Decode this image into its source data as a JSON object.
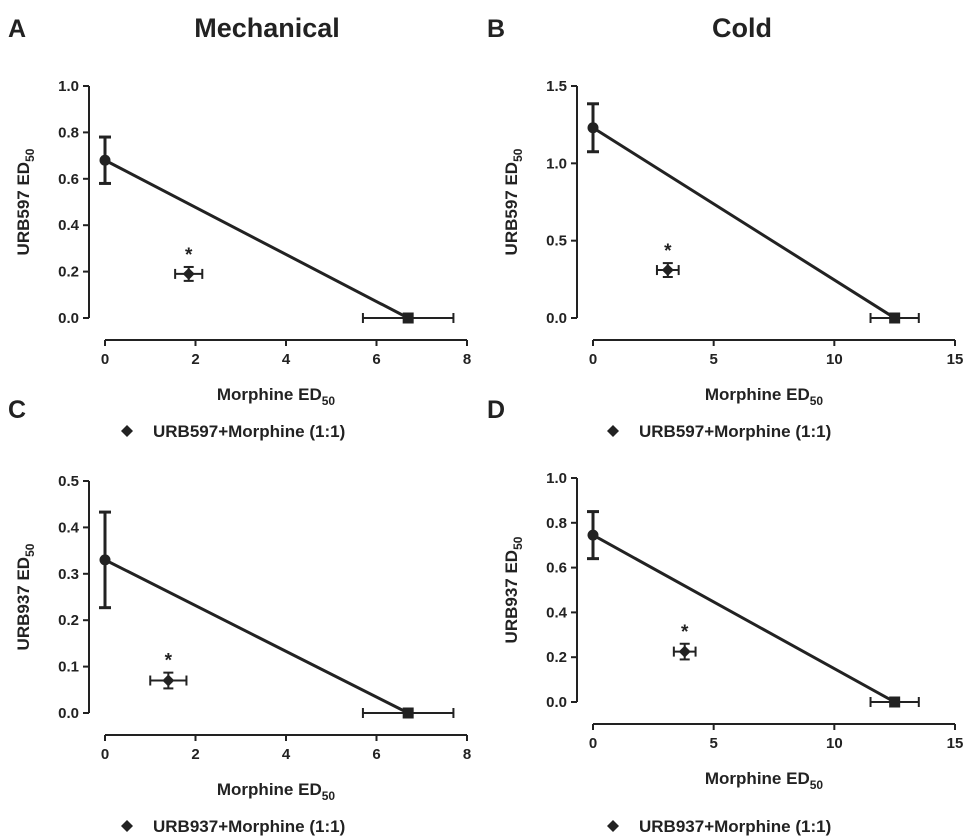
{
  "column_titles": [
    "Mechanical",
    "Cold"
  ],
  "chart_data": [
    {
      "panel": "A",
      "type": "scatter",
      "title": "Mechanical",
      "xlabel": "Morphine ED",
      "xlabel_sub": "50",
      "ylabel": "URB597 ED",
      "ylabel_sub": "50",
      "xlim": [
        0,
        8
      ],
      "ylim": [
        0,
        1.0
      ],
      "xticks": [
        "0",
        "2",
        "4",
        "6",
        "8"
      ],
      "yticks": [
        "0.0",
        "0.2",
        "0.4",
        "0.6",
        "0.8",
        "1.0"
      ],
      "isobole": {
        "y_intercept": 0.68,
        "y_err": 0.1,
        "x_intercept": 6.7,
        "x_err_low": 1.0,
        "x_err_high": 1.0
      },
      "combination": {
        "x": 1.85,
        "y": 0.19,
        "x_err": 0.3,
        "y_err": 0.03,
        "marker": "*"
      },
      "legend": [
        "URB597+Morphine (1:1)"
      ]
    },
    {
      "panel": "B",
      "type": "scatter",
      "title": "Cold",
      "xlabel": "Morphine ED",
      "xlabel_sub": "50",
      "ylabel": "URB597 ED",
      "ylabel_sub": "50",
      "xlim": [
        0,
        15
      ],
      "ylim": [
        0,
        1.5
      ],
      "xticks": [
        "0",
        "5",
        "10",
        "15"
      ],
      "yticks": [
        "0.0",
        "0.5",
        "1.0",
        "1.5"
      ],
      "isobole": {
        "y_intercept": 1.23,
        "y_err": 0.155,
        "x_intercept": 12.5,
        "x_err_low": 1.0,
        "x_err_high": 1.0
      },
      "combination": {
        "x": 3.1,
        "y": 0.31,
        "x_err": 0.45,
        "y_err": 0.045,
        "marker": "*"
      },
      "legend": [
        "URB597+Morphine (1:1)"
      ]
    },
    {
      "panel": "C",
      "type": "scatter",
      "title": "",
      "xlabel": "Morphine ED",
      "xlabel_sub": "50",
      "ylabel": "URB937 ED",
      "ylabel_sub": "50",
      "xlim": [
        0,
        8
      ],
      "ylim": [
        0,
        0.5
      ],
      "xticks": [
        "0",
        "2",
        "4",
        "6",
        "8"
      ],
      "yticks": [
        "0.0",
        "0.1",
        "0.2",
        "0.3",
        "0.4",
        "0.5"
      ],
      "isobole": {
        "y_intercept": 0.33,
        "y_err": 0.103,
        "x_intercept": 6.7,
        "x_err_low": 1.0,
        "x_err_high": 1.0
      },
      "combination": {
        "x": 1.4,
        "y": 0.07,
        "x_err": 0.4,
        "y_err": 0.017,
        "marker": "*"
      },
      "legend": [
        "URB937+Morphine (1:1)"
      ]
    },
    {
      "panel": "D",
      "type": "scatter",
      "title": "",
      "xlabel": "Morphine ED",
      "xlabel_sub": "50",
      "ylabel": "URB937 ED",
      "ylabel_sub": "50",
      "xlim": [
        0,
        15
      ],
      "ylim": [
        0,
        1.0
      ],
      "xticks": [
        "0",
        "5",
        "10",
        "15"
      ],
      "yticks": [
        "0.0",
        "0.2",
        "0.4",
        "0.6",
        "0.8",
        "1.0"
      ],
      "isobole": {
        "y_intercept": 0.745,
        "y_err": 0.105,
        "x_intercept": 12.5,
        "x_err_low": 1.0,
        "x_err_high": 1.0
      },
      "combination": {
        "x": 3.8,
        "y": 0.225,
        "x_err": 0.45,
        "y_err": 0.035,
        "marker": "*"
      },
      "legend": [
        "URB937+Morphine (1:1)"
      ]
    }
  ]
}
